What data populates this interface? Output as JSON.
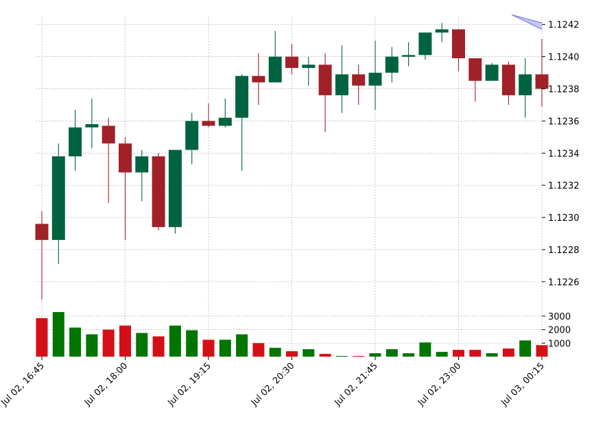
{
  "chart_data": {
    "type": "candlestick",
    "price_axis": {
      "ylim": [
        1.12245,
        1.12425
      ],
      "ticks": [
        1.1226,
        1.1228,
        1.123,
        1.1232,
        1.1234,
        1.1236,
        1.1238,
        1.124,
        1.1242
      ],
      "tick_labels": [
        "1.1226",
        "1.1228",
        "1.1230",
        "1.1232",
        "1.1234",
        "1.1236",
        "1.1238",
        "1.1240",
        "1.1242"
      ]
    },
    "volume_axis": {
      "ylim": [
        0,
        3300
      ],
      "ticks": [
        1000,
        2000,
        3000
      ],
      "tick_labels": [
        "1000",
        "2000",
        "3000"
      ]
    },
    "x_tick_indices": [
      0,
      5,
      10,
      15,
      20,
      25,
      30
    ],
    "x_tick_labels": [
      "Jul 02, 16:45",
      "Jul 02, 18:00",
      "Jul 02, 19:15",
      "Jul 02, 20:30",
      "Jul 02, 21:45",
      "Jul 02, 23:00",
      "Jul 03, 00:15"
    ],
    "candles": [
      {
        "o": 1.12296,
        "h": 1.12304,
        "l": 1.12249,
        "c": 1.12286,
        "v": 2850
      },
      {
        "o": 1.12286,
        "h": 1.12346,
        "l": 1.12271,
        "c": 1.12338,
        "v": 3300
      },
      {
        "o": 1.12338,
        "h": 1.12367,
        "l": 1.12329,
        "c": 1.12356,
        "v": 2150
      },
      {
        "o": 1.12356,
        "h": 1.12374,
        "l": 1.12343,
        "c": 1.12358,
        "v": 1650
      },
      {
        "o": 1.12357,
        "h": 1.12362,
        "l": 1.12309,
        "c": 1.12346,
        "v": 2000
      },
      {
        "o": 1.12346,
        "h": 1.1235,
        "l": 1.12286,
        "c": 1.12328,
        "v": 2300
      },
      {
        "o": 1.12328,
        "h": 1.12342,
        "l": 1.1231,
        "c": 1.12338,
        "v": 1750
      },
      {
        "o": 1.12338,
        "h": 1.1234,
        "l": 1.12292,
        "c": 1.12294,
        "v": 1500
      },
      {
        "o": 1.12294,
        "h": 1.12342,
        "l": 1.1229,
        "c": 1.12342,
        "v": 2300
      },
      {
        "o": 1.12342,
        "h": 1.12365,
        "l": 1.12333,
        "c": 1.1236,
        "v": 1950
      },
      {
        "o": 1.1236,
        "h": 1.12371,
        "l": 1.12356,
        "c": 1.12357,
        "v": 1250
      },
      {
        "o": 1.12357,
        "h": 1.12374,
        "l": 1.12356,
        "c": 1.12362,
        "v": 1250
      },
      {
        "o": 1.12362,
        "h": 1.12389,
        "l": 1.12329,
        "c": 1.12388,
        "v": 1650
      },
      {
        "o": 1.12388,
        "h": 1.12402,
        "l": 1.1237,
        "c": 1.12384,
        "v": 1000
      },
      {
        "o": 1.12384,
        "h": 1.12416,
        "l": 1.12384,
        "c": 1.124,
        "v": 650
      },
      {
        "o": 1.124,
        "h": 1.12408,
        "l": 1.12389,
        "c": 1.12393,
        "v": 400
      },
      {
        "o": 1.12393,
        "h": 1.124,
        "l": 1.12382,
        "c": 1.12395,
        "v": 550
      },
      {
        "o": 1.12395,
        "h": 1.12402,
        "l": 1.12353,
        "c": 1.12376,
        "v": 200
      },
      {
        "o": 1.12376,
        "h": 1.12407,
        "l": 1.12365,
        "c": 1.12389,
        "v": 50
      },
      {
        "o": 1.12389,
        "h": 1.12395,
        "l": 1.1237,
        "c": 1.12382,
        "v": 50
      },
      {
        "o": 1.12382,
        "h": 1.1241,
        "l": 1.12367,
        "c": 1.1239,
        "v": 250
      },
      {
        "o": 1.1239,
        "h": 1.12406,
        "l": 1.12384,
        "c": 1.124,
        "v": 550
      },
      {
        "o": 1.124,
        "h": 1.12409,
        "l": 1.12394,
        "c": 1.12401,
        "v": 250
      },
      {
        "o": 1.12401,
        "h": 1.12415,
        "l": 1.12398,
        "c": 1.12415,
        "v": 1050
      },
      {
        "o": 1.12415,
        "h": 1.12421,
        "l": 1.12409,
        "c": 1.12417,
        "v": 350
      },
      {
        "o": 1.12417,
        "h": 1.12417,
        "l": 1.12391,
        "c": 1.12399,
        "v": 500
      },
      {
        "o": 1.12399,
        "h": 1.12399,
        "l": 1.12372,
        "c": 1.12385,
        "v": 500
      },
      {
        "o": 1.12385,
        "h": 1.12396,
        "l": 1.12385,
        "c": 1.12395,
        "v": 250
      },
      {
        "o": 1.12395,
        "h": 1.12397,
        "l": 1.1237,
        "c": 1.12376,
        "v": 600
      },
      {
        "o": 1.12376,
        "h": 1.12399,
        "l": 1.12362,
        "c": 1.12389,
        "v": 1200
      },
      {
        "o": 1.12389,
        "h": 1.12411,
        "l": 1.12369,
        "c": 1.1238,
        "v": 850
      }
    ],
    "overlay_band": {
      "start_index": 28.2,
      "upper": [
        1.12426,
        1.12421
      ],
      "lower": [
        1.12426,
        1.12417
      ]
    },
    "grid": true,
    "colors": {
      "up_candle": "#006340",
      "down_candle": "#A02128",
      "up_volume": "#007500",
      "down_volume": "#D50F17",
      "grid": "#b0b0b0",
      "band_fill": "#C5C8F4",
      "band_edge": "#6A6FE0"
    }
  }
}
